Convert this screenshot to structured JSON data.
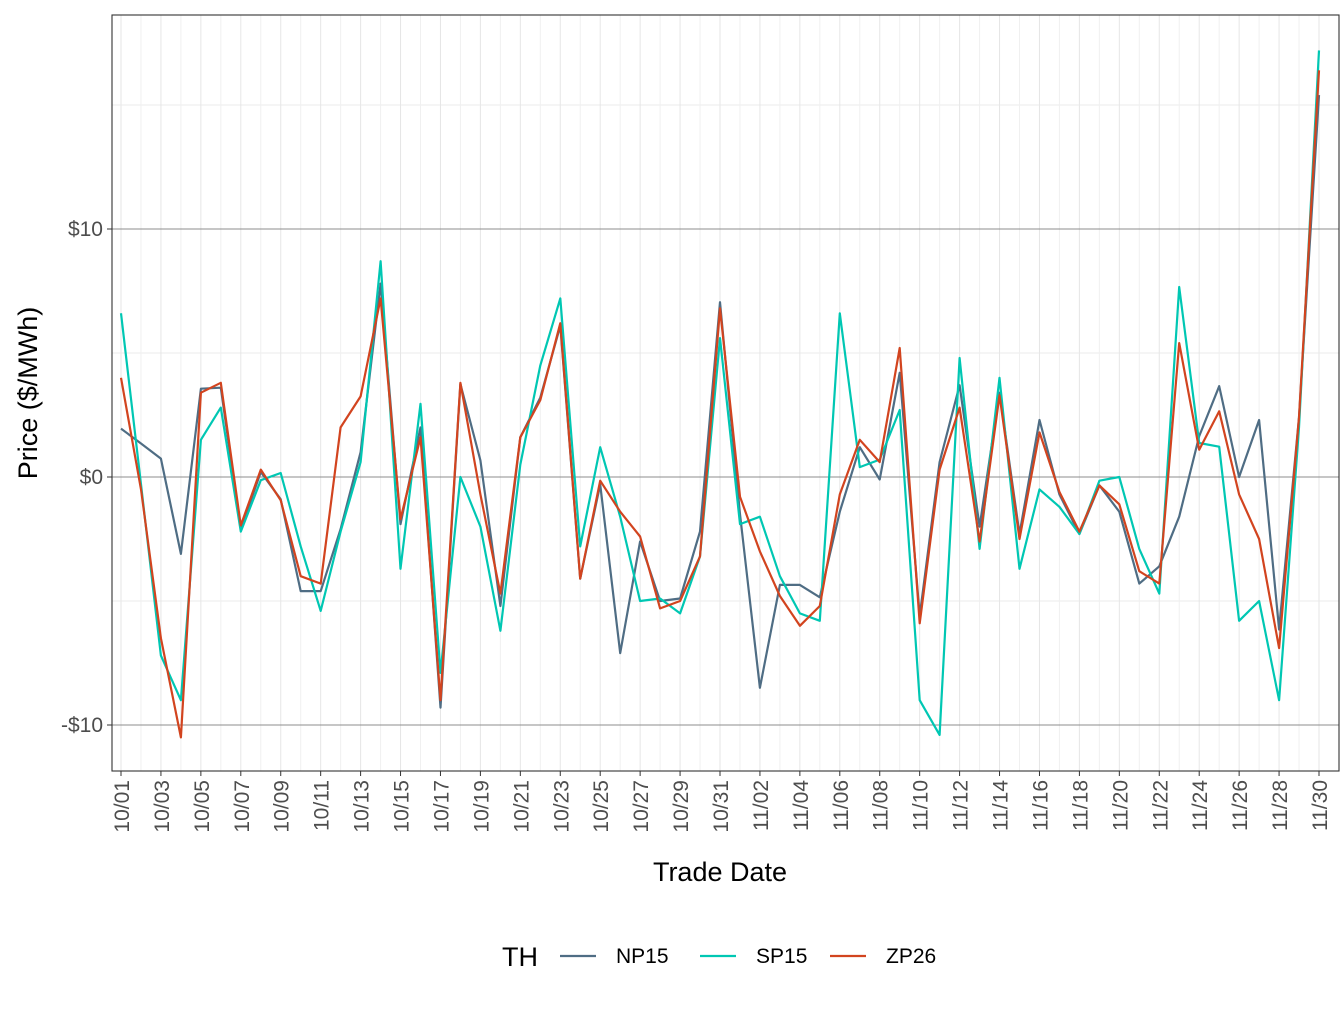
{
  "chart_data": {
    "type": "line",
    "title": "",
    "xlabel": "Trade Date",
    "ylabel": "Price ($/MWh)",
    "ylim": [
      -11.8,
      18.6
    ],
    "y_ticks": [
      {
        "value": 10,
        "label": "$10"
      },
      {
        "value": 0,
        "label": "$0"
      },
      {
        "value": -10,
        "label": "-$10"
      }
    ],
    "grid": true,
    "legend": {
      "title": "TH",
      "placement": "bottom"
    },
    "x": [
      "10/01",
      "10/02",
      "10/03",
      "10/04",
      "10/05",
      "10/06",
      "10/07",
      "10/08",
      "10/09",
      "10/10",
      "10/11",
      "10/12",
      "10/13",
      "10/14",
      "10/15",
      "10/16",
      "10/17",
      "10/18",
      "10/19",
      "10/20",
      "10/21",
      "10/22",
      "10/23",
      "10/24",
      "10/25",
      "10/26",
      "10/27",
      "10/28",
      "10/29",
      "10/30",
      "10/31",
      "11/01",
      "11/02",
      "11/03",
      "11/04",
      "11/05",
      "11/06",
      "11/07",
      "11/08",
      "11/09",
      "11/10",
      "11/11",
      "11/12",
      "11/13",
      "11/14",
      "11/15",
      "11/16",
      "11/17",
      "11/18",
      "11/19",
      "11/20",
      "11/21",
      "11/22",
      "11/23",
      "11/24",
      "11/25",
      "11/26",
      "11/27",
      "11/28",
      "11/29",
      "11/30"
    ],
    "x_tick_labels": [
      "10/01",
      "10/03",
      "10/05",
      "10/07",
      "10/09",
      "10/11",
      "10/13",
      "10/15",
      "10/17",
      "10/19",
      "10/21",
      "10/23",
      "10/25",
      "10/27",
      "10/29",
      "10/31",
      "11/02",
      "11/04",
      "11/06",
      "11/08",
      "11/10",
      "11/12",
      "11/14",
      "11/16",
      "11/18",
      "11/20",
      "11/22",
      "11/24",
      "11/26",
      "11/28",
      "11/30"
    ],
    "series": [
      {
        "name": "NP15",
        "color": "#4f6d84",
        "values": [
          1.95,
          1.35,
          0.74,
          -3.1,
          3.56,
          3.6,
          -2.1,
          0.2,
          -0.9,
          -4.6,
          -4.6,
          -2.1,
          1.0,
          7.8,
          -1.9,
          2.0,
          -9.3,
          3.75,
          0.67,
          -5.2,
          1.6,
          3.2,
          6.1,
          -4.1,
          -0.3,
          -7.1,
          -2.6,
          -5.0,
          -4.9,
          -2.2,
          7.05,
          -1.5,
          -8.5,
          -4.35,
          -4.35,
          -4.85,
          -1.4,
          1.2,
          -0.1,
          4.2,
          -5.6,
          0.6,
          3.7,
          -2.0,
          3.4,
          -2.3,
          2.3,
          -0.7,
          -2.3,
          -0.34,
          -1.4,
          -4.3,
          -3.6,
          -1.6,
          1.65,
          3.66,
          0.0,
          2.3,
          -6.15,
          2.4,
          15.4
        ]
      },
      {
        "name": "SP15",
        "color": "#00c7b3",
        "values": [
          6.6,
          -0.3,
          -7.2,
          -9.0,
          1.5,
          2.8,
          -2.2,
          -0.13,
          0.16,
          -2.8,
          -5.4,
          -2.2,
          0.6,
          8.7,
          -3.7,
          2.95,
          -7.9,
          0.0,
          -2.0,
          -6.2,
          0.5,
          4.5,
          7.2,
          -2.8,
          1.2,
          -1.6,
          -5.0,
          -4.9,
          -5.5,
          -3.2,
          5.6,
          -1.9,
          -1.6,
          -4.0,
          -5.5,
          -5.8,
          6.6,
          0.4,
          0.7,
          2.7,
          -9.0,
          -10.4,
          4.8,
          -2.9,
          4.0,
          -3.7,
          -0.5,
          -1.2,
          -2.3,
          -0.15,
          0.0,
          -2.9,
          -4.7,
          7.66,
          1.37,
          1.22,
          -5.8,
          -5.0,
          -9.0,
          2.0,
          17.2
        ]
      },
      {
        "name": "ZP26",
        "color": "#d2441f",
        "values": [
          4.0,
          -0.5,
          -6.5,
          -10.5,
          3.4,
          3.8,
          -1.95,
          0.3,
          -0.94,
          -4.0,
          -4.3,
          2.0,
          3.25,
          7.2,
          -1.7,
          1.6,
          -9.0,
          3.8,
          -0.7,
          -4.7,
          1.6,
          3.1,
          6.2,
          -4.1,
          -0.15,
          -1.4,
          -2.4,
          -5.3,
          -5.0,
          -3.2,
          6.8,
          -0.8,
          -3.0,
          -4.8,
          -6.0,
          -5.2,
          -0.7,
          1.5,
          0.6,
          5.2,
          -5.9,
          0.3,
          2.8,
          -2.6,
          3.3,
          -2.5,
          1.8,
          -0.6,
          -2.2,
          -0.34,
          -1.1,
          -3.8,
          -4.3,
          5.4,
          1.1,
          2.65,
          -0.7,
          -2.5,
          -6.9,
          2.4,
          16.4
        ]
      }
    ]
  }
}
